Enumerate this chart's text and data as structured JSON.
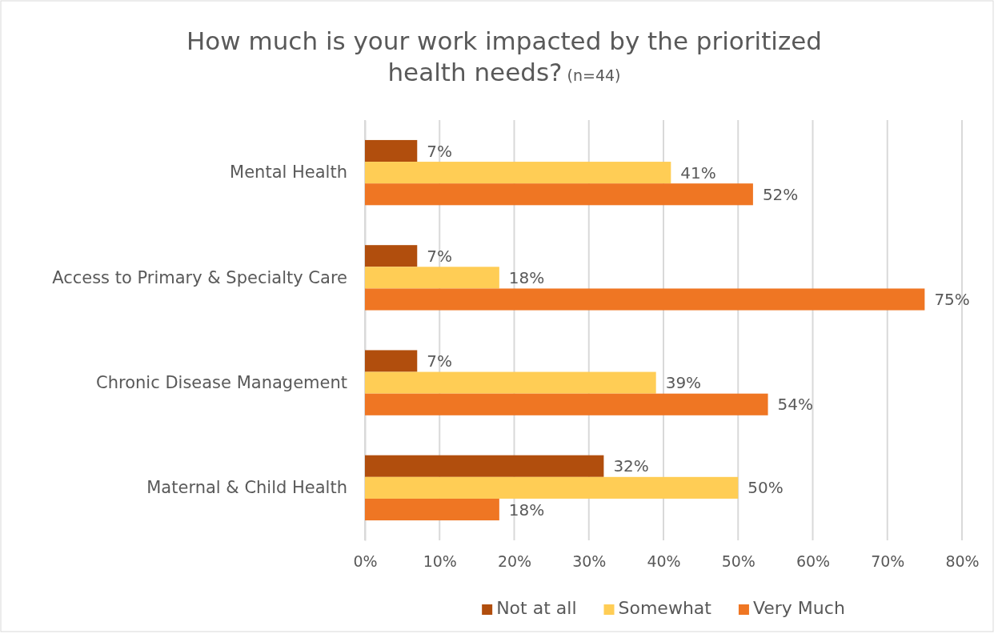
{
  "chart_data": {
    "type": "bar",
    "orientation": "horizontal",
    "title": "How much is your work impacted by the prioritized health needs?",
    "subtitle": "(n=44)",
    "categories": [
      "Mental Health",
      "Access to Primary & Specialty Care",
      "Chronic Disease Management",
      "Maternal & Child Health"
    ],
    "series": [
      {
        "name": "Not at all",
        "color": "#b14e0d",
        "values": [
          7,
          7,
          7,
          32
        ],
        "value_labels": [
          "7%",
          "7%",
          "7%",
          "32%"
        ]
      },
      {
        "name": "Somewhat",
        "color": "#ffcd55",
        "values": [
          41,
          18,
          39,
          50
        ],
        "value_labels": [
          "41%",
          "18%",
          "39%",
          "50%"
        ]
      },
      {
        "name": "Very Much",
        "color": "#ef7623",
        "values": [
          52,
          75,
          54,
          18
        ],
        "value_labels": [
          "52%",
          "75%",
          "54%",
          "18%"
        ]
      }
    ],
    "xlim": [
      0,
      80
    ],
    "xticks": [
      {
        "value": 0,
        "label": "0%"
      },
      {
        "value": 10,
        "label": "10%"
      },
      {
        "value": 20,
        "label": "20%"
      },
      {
        "value": 30,
        "label": "30%"
      },
      {
        "value": 40,
        "label": "40%"
      },
      {
        "value": 50,
        "label": "50%"
      },
      {
        "value": 60,
        "label": "60%"
      },
      {
        "value": 70,
        "label": "70%"
      },
      {
        "value": 80,
        "label": "80%"
      }
    ],
    "grid": "x",
    "legend": "bottom"
  }
}
